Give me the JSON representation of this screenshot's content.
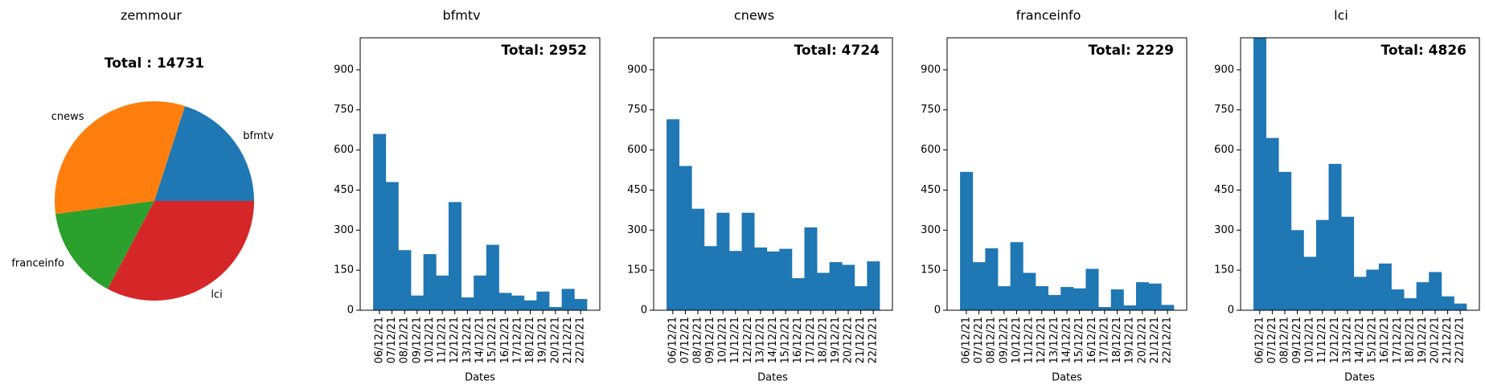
{
  "figure": {
    "suptitles": [
      "zemmour",
      "bfmtv",
      "cnews",
      "franceinfo",
      "lci"
    ]
  },
  "chart_data": [
    {
      "type": "pie",
      "title": "Total : 14731",
      "labels": [
        "bfmtv",
        "cnews",
        "franceinfo",
        "lci"
      ],
      "values": [
        2952,
        4724,
        2229,
        4826
      ],
      "colors": [
        "#1f77b4",
        "#ff7f0e",
        "#2ca02c",
        "#d62728"
      ]
    },
    {
      "type": "bar",
      "annotation": "Total: 2952",
      "xlabel": "Dates",
      "ylabel": "",
      "ylim": [
        0,
        1020
      ],
      "yticks": [
        0,
        150,
        300,
        450,
        600,
        750,
        900
      ],
      "categories": [
        "06/12/21",
        "07/12/21",
        "08/12/21",
        "09/12/21",
        "10/12/21",
        "11/12/21",
        "12/12/21",
        "13/12/21",
        "14/12/21",
        "15/12/21",
        "16/12/21",
        "17/12/21",
        "18/12/21",
        "19/12/21",
        "20/12/21",
        "21/12/21",
        "22/12/21"
      ],
      "values": [
        660,
        480,
        225,
        55,
        210,
        130,
        405,
        48,
        130,
        245,
        65,
        55,
        37,
        70,
        12,
        80,
        42
      ],
      "color": "#1f77b4"
    },
    {
      "type": "bar",
      "annotation": "Total: 4724",
      "xlabel": "Dates",
      "ylabel": "",
      "ylim": [
        0,
        1020
      ],
      "yticks": [
        0,
        150,
        300,
        450,
        600,
        750,
        900
      ],
      "categories": [
        "06/12/21",
        "07/12/21",
        "08/12/21",
        "09/12/21",
        "10/12/21",
        "11/12/21",
        "12/12/21",
        "13/12/21",
        "14/12/21",
        "15/12/21",
        "16/12/21",
        "17/12/21",
        "18/12/21",
        "19/12/21",
        "20/12/21",
        "21/12/21",
        "22/12/21"
      ],
      "values": [
        715,
        540,
        380,
        240,
        365,
        222,
        365,
        235,
        220,
        230,
        120,
        310,
        140,
        180,
        170,
        90,
        183
      ],
      "color": "#1f77b4"
    },
    {
      "type": "bar",
      "annotation": "Total: 2229",
      "xlabel": "Dates",
      "ylabel": "",
      "ylim": [
        0,
        1020
      ],
      "yticks": [
        0,
        150,
        300,
        450,
        600,
        750,
        900
      ],
      "categories": [
        "06/12/21",
        "07/12/21",
        "08/12/21",
        "09/12/21",
        "10/12/21",
        "11/12/21",
        "12/12/21",
        "13/12/21",
        "14/12/21",
        "15/12/21",
        "16/12/21",
        "17/12/21",
        "18/12/21",
        "19/12/21",
        "20/12/21",
        "21/12/21",
        "22/12/21"
      ],
      "values": [
        518,
        180,
        232,
        90,
        255,
        140,
        90,
        57,
        87,
        82,
        155,
        12,
        78,
        18,
        105,
        100,
        20
      ],
      "color": "#1f77b4"
    },
    {
      "type": "bar",
      "annotation": "Total: 4826",
      "xlabel": "Dates",
      "ylabel": "",
      "ylim": [
        0,
        1020
      ],
      "yticks": [
        0,
        150,
        300,
        450,
        600,
        750,
        900
      ],
      "categories": [
        "06/12/21",
        "07/12/21",
        "08/12/21",
        "09/12/21",
        "10/12/21",
        "11/12/21",
        "12/12/21",
        "13/12/21",
        "14/12/21",
        "15/12/21",
        "16/12/21",
        "17/12/21",
        "18/12/21",
        "19/12/21",
        "20/12/21",
        "21/12/21",
        "22/12/21"
      ],
      "values": [
        1020,
        645,
        518,
        300,
        200,
        338,
        548,
        350,
        125,
        152,
        175,
        78,
        45,
        105,
        143,
        52,
        25
      ],
      "color": "#1f77b4"
    }
  ]
}
